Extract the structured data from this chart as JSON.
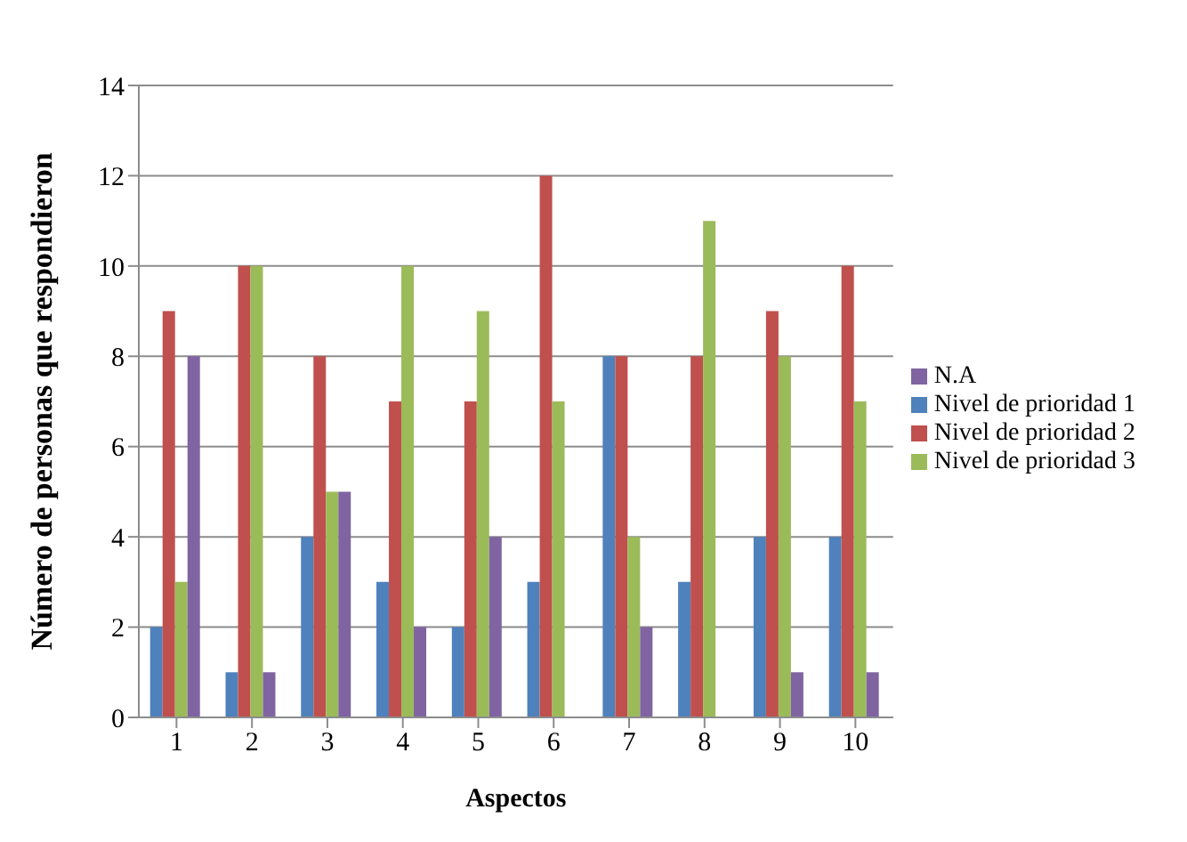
{
  "chart_data": {
    "type": "bar",
    "xlabel": "Aspectos",
    "ylabel": "Número de personas que respondieron",
    "categories": [
      "1",
      "2",
      "3",
      "4",
      "5",
      "6",
      "7",
      "8",
      "9",
      "10"
    ],
    "series": [
      {
        "name": "Nivel de prioridad 1",
        "color": "#4f81bd",
        "values": [
          2,
          1,
          4,
          3,
          2,
          3,
          8,
          3,
          4,
          4
        ]
      },
      {
        "name": "Nivel de prioridad 2",
        "color": "#c0504d",
        "values": [
          9,
          10,
          8,
          7,
          7,
          12,
          8,
          8,
          9,
          10
        ]
      },
      {
        "name": "Nivel de prioridad 3",
        "color": "#9bbb59",
        "values": [
          3,
          10,
          5,
          10,
          9,
          7,
          4,
          11,
          8,
          7
        ]
      },
      {
        "name": "N.A",
        "color": "#8064a2",
        "values": [
          8,
          1,
          5,
          2,
          4,
          0,
          2,
          0,
          1,
          1
        ]
      }
    ],
    "ylim": [
      0,
      14
    ],
    "yticks": [
      0,
      2,
      4,
      6,
      8,
      10,
      12,
      14
    ],
    "grid": "y",
    "legend": "right"
  }
}
